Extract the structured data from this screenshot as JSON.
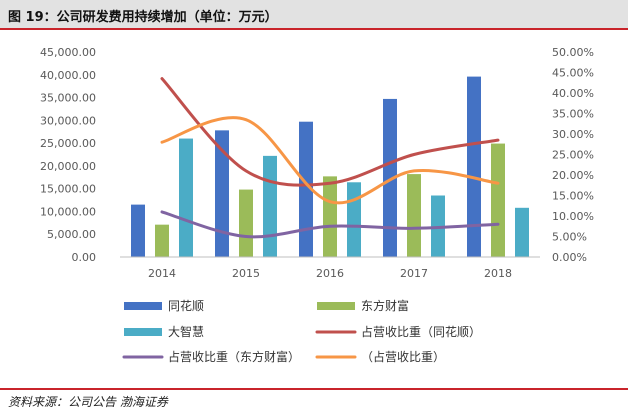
{
  "title": "图 19：公司研发费用持续增加（单位：万元）",
  "source": "资料来源：公司公告  渤海证券",
  "chart_data": {
    "type": "bar",
    "categories": [
      "2014",
      "2015",
      "2016",
      "2017",
      "2018"
    ],
    "bar_series": [
      {
        "name": "同花顺",
        "color": "#4472c4",
        "values": [
          11500,
          27800,
          29700,
          34700,
          39600
        ]
      },
      {
        "name": "东方财富",
        "color": "#9bbb59",
        "values": [
          7100,
          14800,
          17700,
          18200,
          24900
        ]
      },
      {
        "name": "大智慧",
        "color": "#4bacc6",
        "values": [
          26000,
          22200,
          16400,
          13500,
          10800
        ]
      }
    ],
    "line_series": [
      {
        "name": "占营收比重（同花顺）",
        "color": "#c0504d",
        "values": [
          0.435,
          0.21,
          0.18,
          0.25,
          0.285
        ]
      },
      {
        "name": "占营收比重（东方财富）",
        "color": "#8064a2",
        "values": [
          0.11,
          0.05,
          0.075,
          0.07,
          0.08
        ]
      },
      {
        "name": "（占营收比重）",
        "color": "#f79646",
        "values": [
          0.28,
          0.335,
          0.135,
          0.21,
          0.18
        ]
      }
    ],
    "left_axis": {
      "min": 0,
      "max": 45000,
      "ticks": [
        "0.00",
        "5,000.00",
        "10,000.00",
        "15,000.00",
        "20,000.00",
        "25,000.00",
        "30,000.00",
        "35,000.00",
        "40,000.00",
        "45,000.00"
      ]
    },
    "right_axis": {
      "min": 0,
      "max": 0.5,
      "ticks": [
        "0.00%",
        "5.00%",
        "10.00%",
        "15.00%",
        "20.00%",
        "25.00%",
        "30.00%",
        "35.00%",
        "40.00%",
        "45.00%",
        "50.00%"
      ]
    },
    "legend": [
      "同花顺",
      "东方财富",
      "大智慧",
      "占营收比重（同花顺）",
      "占营收比重（东方财富）",
      "（占营收比重）"
    ],
    "legend_position": "bottom",
    "grid": false
  }
}
